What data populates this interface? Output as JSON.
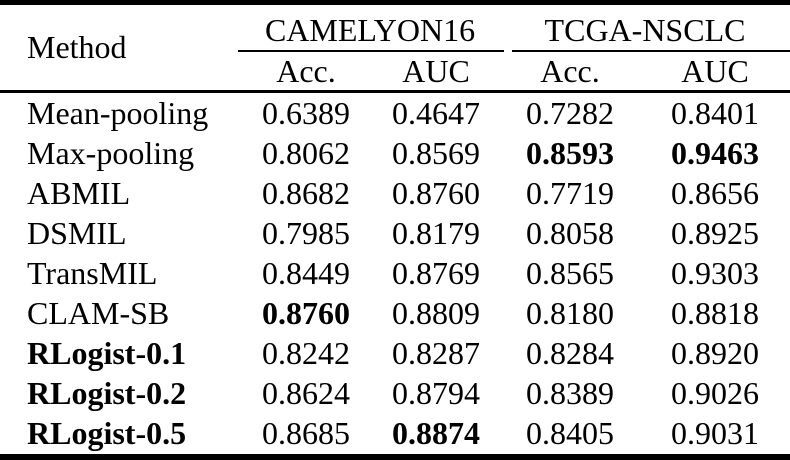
{
  "table": {
    "method_header": "Method",
    "group_headers": [
      {
        "label": "CAMELYON16"
      },
      {
        "label": "TCGA-NSCLC"
      }
    ],
    "sub_headers": [
      "Acc.",
      "AUC",
      "Acc.",
      "AUC"
    ],
    "rows": [
      {
        "method": "Mean-pooling",
        "method_bold": false,
        "values": [
          "0.6389",
          "0.4647",
          "0.7282",
          "0.8401"
        ],
        "bold": [
          false,
          false,
          false,
          false
        ]
      },
      {
        "method": "Max-pooling",
        "method_bold": false,
        "values": [
          "0.8062",
          "0.8569",
          "0.8593",
          "0.9463"
        ],
        "bold": [
          false,
          false,
          true,
          true
        ]
      },
      {
        "method": "ABMIL",
        "method_bold": false,
        "values": [
          "0.8682",
          "0.8760",
          "0.7719",
          "0.8656"
        ],
        "bold": [
          false,
          false,
          false,
          false
        ]
      },
      {
        "method": "DSMIL",
        "method_bold": false,
        "values": [
          "0.7985",
          "0.8179",
          "0.8058",
          "0.8925"
        ],
        "bold": [
          false,
          false,
          false,
          false
        ]
      },
      {
        "method": "TransMIL",
        "method_bold": false,
        "values": [
          "0.8449",
          "0.8769",
          "0.8565",
          "0.9303"
        ],
        "bold": [
          false,
          false,
          false,
          false
        ]
      },
      {
        "method": "CLAM-SB",
        "method_bold": false,
        "values": [
          "0.8760",
          "0.8809",
          "0.8180",
          "0.8818"
        ],
        "bold": [
          true,
          false,
          false,
          false
        ]
      },
      {
        "method": "RLogist-0.1",
        "method_bold": true,
        "values": [
          "0.8242",
          "0.8287",
          "0.8284",
          "0.8920"
        ],
        "bold": [
          false,
          false,
          false,
          false
        ]
      },
      {
        "method": "RLogist-0.2",
        "method_bold": true,
        "values": [
          "0.8624",
          "0.8794",
          "0.8389",
          "0.9026"
        ],
        "bold": [
          false,
          false,
          false,
          false
        ]
      },
      {
        "method": "RLogist-0.5",
        "method_bold": true,
        "values": [
          "0.8685",
          "0.8874",
          "0.8405",
          "0.9031"
        ],
        "bold": [
          false,
          true,
          false,
          false
        ]
      }
    ],
    "colors": {
      "text": "#000000",
      "background": "#ffffff",
      "rule": "#000000"
    }
  }
}
